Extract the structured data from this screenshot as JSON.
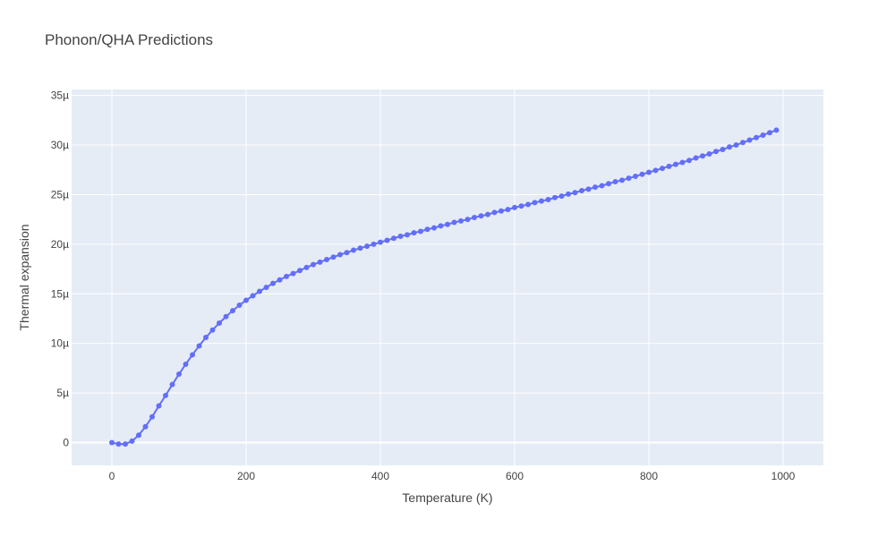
{
  "chart_data": {
    "type": "line",
    "title": "Phonon/QHA Predictions",
    "xlabel": "Temperature (K)",
    "ylabel": "Thermal expansion",
    "xlim": [
      -60,
      1060
    ],
    "ylim": [
      -2.3,
      35.6
    ],
    "x_ticks": [
      0,
      200,
      400,
      600,
      800,
      1000
    ],
    "x_tick_labels": [
      "0",
      "200",
      "400",
      "600",
      "800",
      "1000"
    ],
    "y_ticks": [
      0,
      5,
      10,
      15,
      20,
      25,
      30,
      35
    ],
    "y_tick_labels": [
      "0",
      "5µ",
      "10µ",
      "15µ",
      "20µ",
      "25µ",
      "30µ",
      "35µ"
    ],
    "y_unit_note": "values in units of 1e-6 (µ)",
    "grid": true,
    "series": [
      {
        "color": "#636efa",
        "mode": "lines+markers",
        "x": [
          0,
          10,
          20,
          30,
          40,
          50,
          60,
          70,
          80,
          90,
          100,
          110,
          120,
          130,
          140,
          150,
          160,
          170,
          180,
          190,
          200,
          210,
          220,
          230,
          240,
          250,
          260,
          270,
          280,
          290,
          300,
          310,
          320,
          330,
          340,
          350,
          360,
          370,
          380,
          390,
          400,
          410,
          420,
          430,
          440,
          450,
          460,
          470,
          480,
          490,
          500,
          510,
          520,
          530,
          540,
          550,
          560,
          570,
          580,
          590,
          600,
          610,
          620,
          630,
          640,
          650,
          660,
          670,
          680,
          690,
          700,
          710,
          720,
          730,
          740,
          750,
          760,
          770,
          780,
          790,
          800,
          810,
          820,
          830,
          840,
          850,
          860,
          870,
          880,
          890,
          900,
          910,
          920,
          930,
          940,
          950,
          960,
          970,
          980,
          990
        ],
        "y": [
          0.0,
          -0.15,
          -0.15,
          0.15,
          0.75,
          1.6,
          2.6,
          3.7,
          4.75,
          5.85,
          6.9,
          7.9,
          8.85,
          9.75,
          10.6,
          11.35,
          12.05,
          12.7,
          13.3,
          13.85,
          14.35,
          14.8,
          15.25,
          15.65,
          16.05,
          16.4,
          16.75,
          17.05,
          17.35,
          17.65,
          17.95,
          18.2,
          18.45,
          18.7,
          18.95,
          19.15,
          19.4,
          19.6,
          19.8,
          20.0,
          20.2,
          20.4,
          20.6,
          20.8,
          20.95,
          21.15,
          21.3,
          21.5,
          21.65,
          21.85,
          22.0,
          22.2,
          22.35,
          22.5,
          22.7,
          22.85,
          23.0,
          23.2,
          23.35,
          23.5,
          23.7,
          23.85,
          24.0,
          24.2,
          24.35,
          24.5,
          24.7,
          24.85,
          25.05,
          25.2,
          25.4,
          25.55,
          25.75,
          25.9,
          26.1,
          26.3,
          26.45,
          26.65,
          26.85,
          27.05,
          27.25,
          27.45,
          27.65,
          27.85,
          28.05,
          28.25,
          28.45,
          28.7,
          28.9,
          29.1,
          29.35,
          29.55,
          29.8,
          30.0,
          30.25,
          30.5,
          30.75,
          31.0,
          31.25,
          31.5
        ]
      }
    ]
  }
}
